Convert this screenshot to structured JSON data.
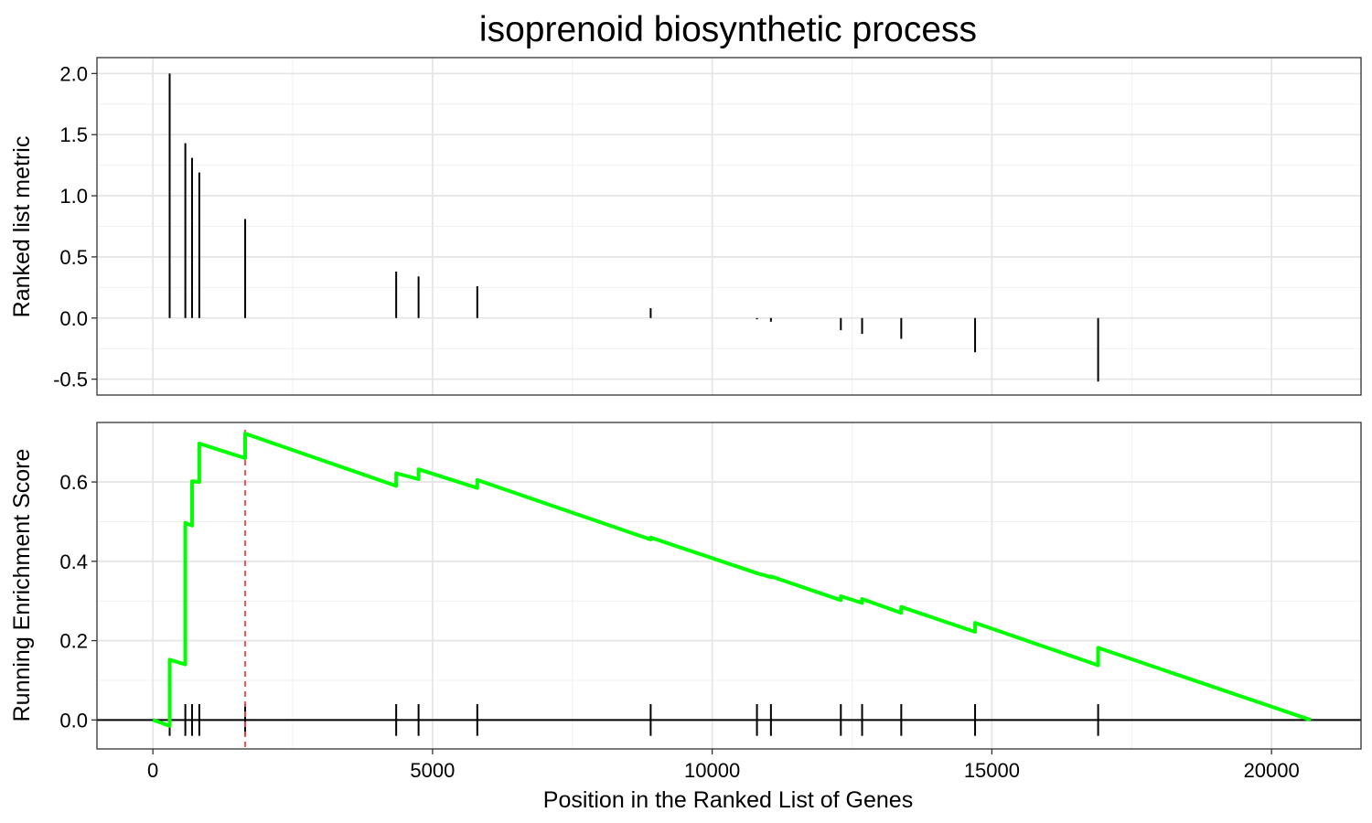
{
  "chart_data": {
    "type": "line",
    "title": "isoprenoid biosynthetic process",
    "xlabel": "Position in the Ranked List of Genes",
    "xlim": [
      -1000,
      21600
    ],
    "xticks": [
      0,
      5000,
      10000,
      15000,
      20000
    ],
    "xtick_labels": [
      "0",
      "5000",
      "10000",
      "15000",
      "20000"
    ],
    "leading_edge_position": 1650,
    "colors": {
      "running_es": "#00ff00",
      "leading_edge": "#ff4040",
      "bars": "#000000"
    },
    "panels": [
      {
        "name": "ranked-list-metric",
        "ylabel": "Ranked list metric",
        "ylim": [
          -0.63,
          2.13
        ],
        "yticks": [
          -0.5,
          0.0,
          0.5,
          1.0,
          1.5,
          2.0
        ],
        "ytick_labels": [
          "-0.5",
          "0.0",
          "0.5",
          "1.0",
          "1.5",
          "2.0"
        ],
        "series": [
          {
            "type": "bar",
            "x": [
              300,
              580,
              700,
              830,
              1650,
              4350,
              4750,
              5800,
              8900,
              10800,
              11050,
              12300,
              12680,
              13380,
              14700,
              16900
            ],
            "values": [
              2.0,
              1.43,
              1.31,
              1.19,
              0.81,
              0.38,
              0.34,
              0.26,
              0.08,
              -0.01,
              -0.03,
              -0.1,
              -0.13,
              -0.17,
              -0.28,
              -0.52
            ]
          }
        ]
      },
      {
        "name": "running-enrichment-score",
        "ylabel": "Running Enrichment Score",
        "ylim": [
          -0.073,
          0.75
        ],
        "yticks": [
          0.0,
          0.2,
          0.4,
          0.6
        ],
        "ytick_labels": [
          "0.0",
          "0.2",
          "0.4",
          "0.6"
        ],
        "series": [
          {
            "type": "line",
            "x": [
              0,
              300,
              300,
              580,
              580,
              700,
              700,
              830,
              830,
              1650,
              1650,
              4350,
              4350,
              4750,
              4750,
              5800,
              5800,
              8900,
              8900,
              10800,
              10800,
              11050,
              11050,
              12300,
              12300,
              12680,
              12680,
              13380,
              13380,
              14700,
              14700,
              16900,
              16900,
              20700
            ],
            "values": [
              0.0,
              -0.015,
              0.152,
              0.14,
              0.497,
              0.49,
              0.602,
              0.6,
              0.697,
              0.66,
              0.722,
              0.59,
              0.622,
              0.607,
              0.632,
              0.585,
              0.605,
              0.455,
              0.46,
              0.37,
              0.37,
              0.36,
              0.362,
              0.302,
              0.312,
              0.295,
              0.305,
              0.27,
              0.285,
              0.222,
              0.245,
              0.138,
              0.182,
              0.0
            ]
          },
          {
            "type": "rug",
            "x": [
              300,
              580,
              700,
              830,
              1650,
              4350,
              4750,
              5800,
              8900,
              10800,
              11050,
              12300,
              12680,
              13380,
              14700,
              16900
            ]
          }
        ]
      }
    ]
  }
}
